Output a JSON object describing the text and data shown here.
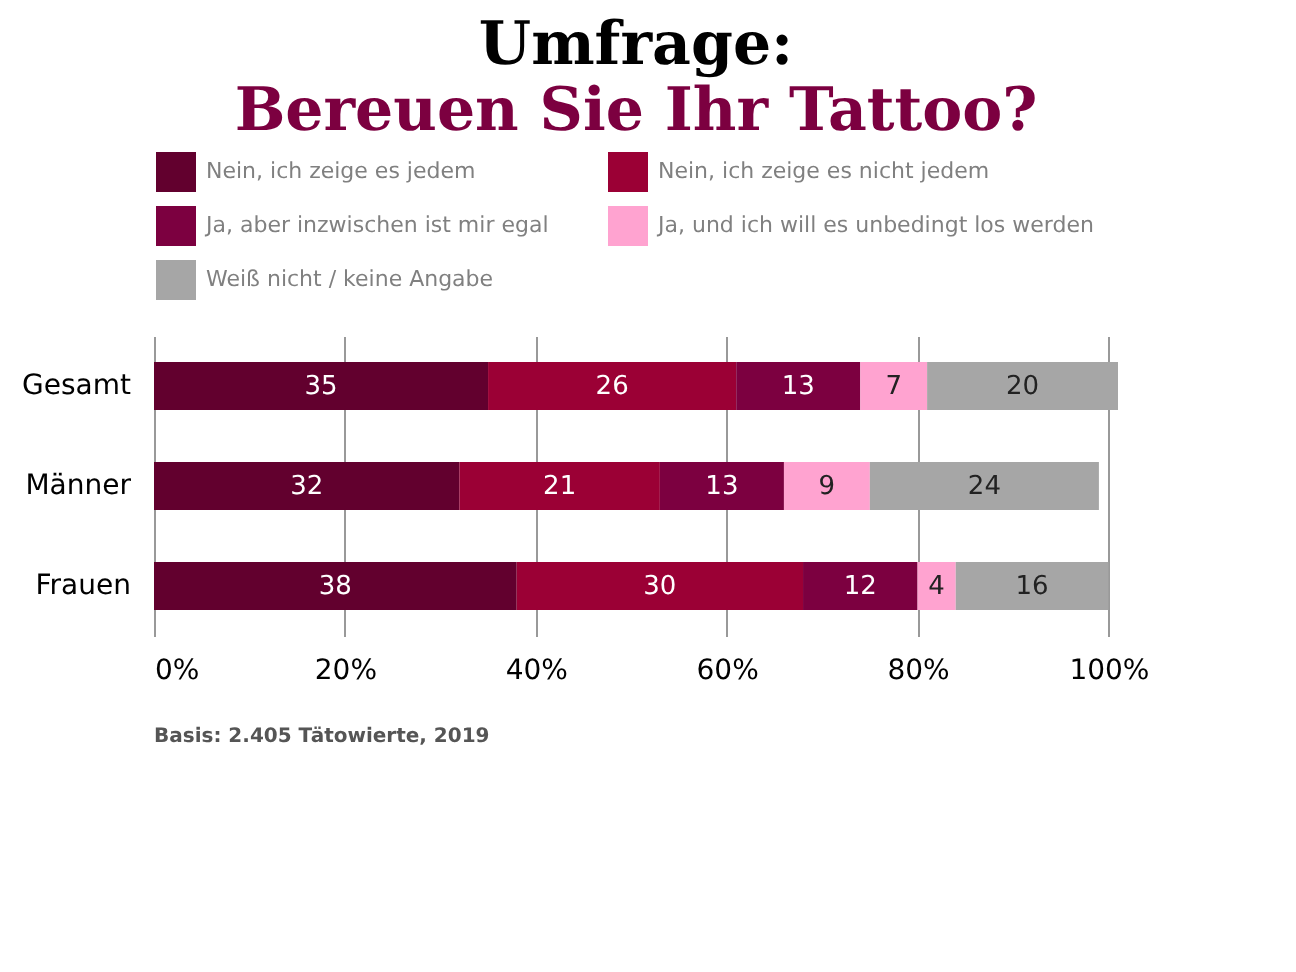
{
  "chart_data": {
    "type": "bar",
    "orientation": "horizontal",
    "stacked": true,
    "title": "Umfrage:",
    "subtitle": "Bereuen Sie Ihr Tattoo?",
    "categories": [
      "Gesamt",
      "Männer",
      "Frauen"
    ],
    "series": [
      {
        "name": "Nein, ich zeige es jedem",
        "color": "#62002e",
        "values": [
          35,
          32,
          38
        ]
      },
      {
        "name": "Nein, ich zeige es nicht jedem",
        "color": "#9b0035",
        "values": [
          26,
          21,
          30
        ]
      },
      {
        "name": "Ja, aber inzwischen ist mir  egal",
        "color": "#7c0040",
        "values": [
          13,
          13,
          12
        ]
      },
      {
        "name": "Ja, und ich will es unbedingt los werden",
        "color": "#ffa3d0",
        "values": [
          7,
          9,
          4
        ]
      },
      {
        "name": "Weiß nicht / keine Angabe",
        "color": "#a6a6a6",
        "values": [
          20,
          24,
          16
        ]
      }
    ],
    "xlim": [
      0,
      101
    ],
    "xticks": [
      {
        "value": 0,
        "label": "0%"
      },
      {
        "value": 20,
        "label": "20%"
      },
      {
        "value": 40,
        "label": "40%"
      },
      {
        "value": 60,
        "label": "60%"
      },
      {
        "value": 80,
        "label": "80%"
      },
      {
        "value": 100,
        "label": "100%"
      }
    ],
    "grid": "x",
    "legend": "top",
    "data_labels": true,
    "annotations": [
      "Basis:  2.405 Tätowierte, 2019"
    ]
  }
}
